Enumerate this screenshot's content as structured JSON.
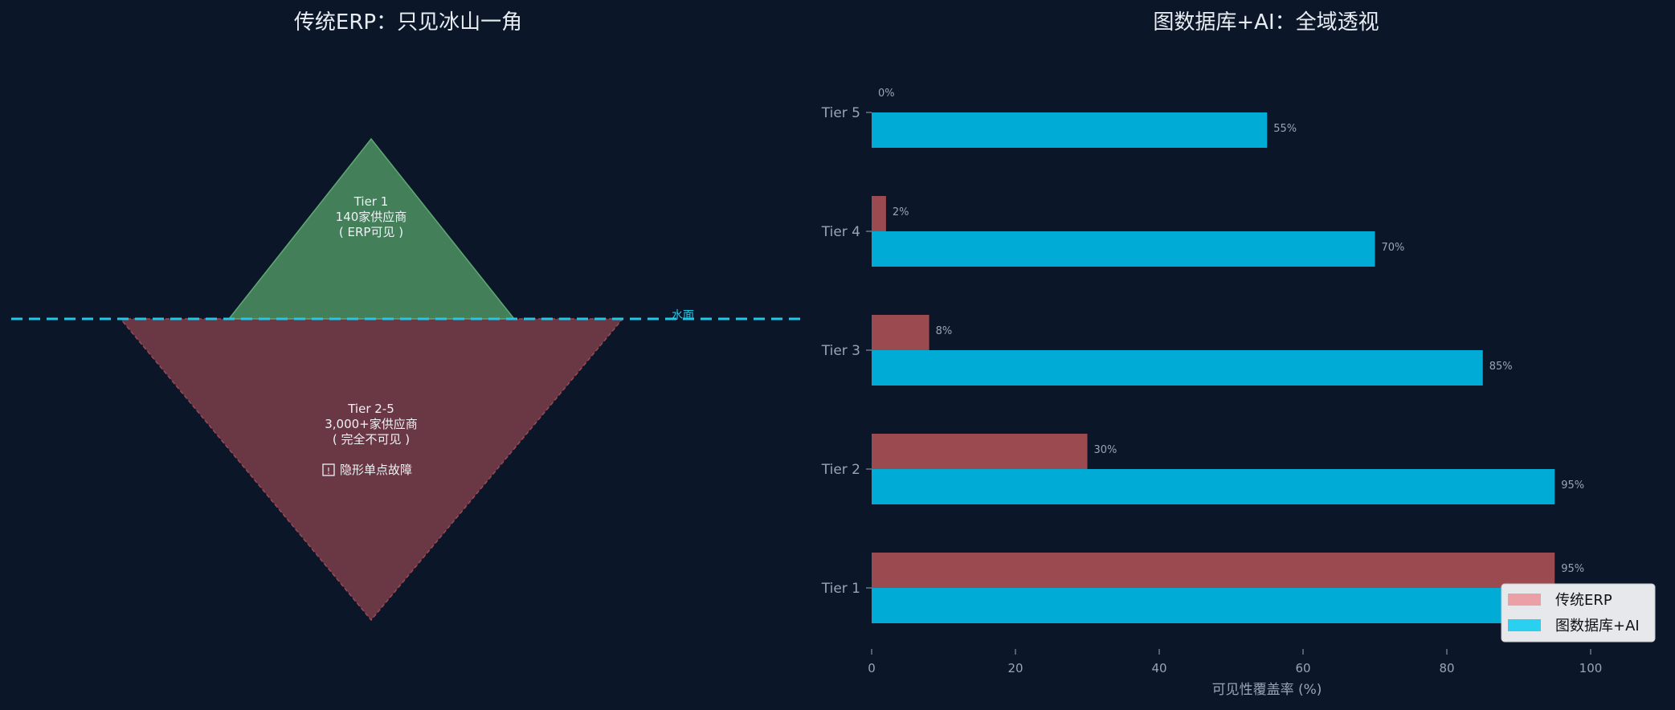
{
  "left_panel": {
    "title": "传统ERP：只见冰山一角",
    "tip_lines": [
      "Tier 1",
      "140家供应商",
      "( ERP可见 )"
    ],
    "base_lines": [
      "Tier 2-5",
      "3,000+家供应商",
      "( 完全不可见 )"
    ],
    "warning_text": "隐形单点故障",
    "warning_icon": "warning-box-icon",
    "water_label": "水面"
  },
  "colors": {
    "background": "#0b1628",
    "tip_fill": "#437f59",
    "base_fill": "#6a3744",
    "water_line": "#22c8e8",
    "erp_bar": "#9b4a50",
    "graph_bar": "#00acd6",
    "legend_erp": "#eaa0a4",
    "legend_graph": "#2ad0f0"
  },
  "chart_data": {
    "type": "bar",
    "orientation": "horizontal",
    "title": "图数据库+AI：全域透视",
    "categories": [
      "Tier 1",
      "Tier 2",
      "Tier 3",
      "Tier 4",
      "Tier 5"
    ],
    "series": [
      {
        "name": "传统ERP",
        "values": [
          95,
          30,
          8,
          2,
          0
        ]
      },
      {
        "name": "图数据库+AI",
        "values": [
          95,
          95,
          85,
          70,
          55
        ]
      }
    ],
    "value_suffix": "%",
    "xlabel": "可见性覆盖率 (%)",
    "xlim": [
      0,
      110
    ],
    "xticks": [
      0,
      20,
      40,
      60,
      80,
      100
    ],
    "grid": false,
    "legend_position": "lower-right"
  }
}
